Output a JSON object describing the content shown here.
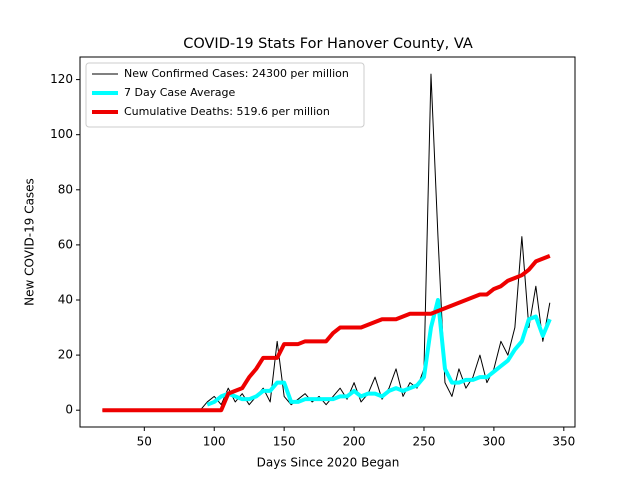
{
  "chart_data": {
    "type": "line",
    "title": "COVID-19 Stats For Hanover County, VA",
    "xlabel": "Days Since 2020 Began",
    "ylabel": "New COVID-19 Cases",
    "x": [
      20,
      25,
      30,
      35,
      40,
      45,
      50,
      55,
      60,
      65,
      70,
      75,
      80,
      85,
      90,
      95,
      100,
      105,
      110,
      115,
      120,
      125,
      130,
      135,
      140,
      145,
      150,
      155,
      160,
      165,
      170,
      175,
      180,
      185,
      190,
      195,
      200,
      205,
      210,
      215,
      220,
      225,
      230,
      235,
      240,
      245,
      250,
      255,
      260,
      265,
      270,
      275,
      280,
      285,
      290,
      295,
      300,
      305,
      310,
      315,
      320,
      325,
      330,
      335,
      340
    ],
    "series": [
      {
        "name": "New Confirmed Cases: 24300 per million",
        "color": "#000000",
        "width": 1,
        "values": [
          0,
          0,
          0,
          0,
          0,
          0,
          0,
          0,
          0,
          0,
          0,
          0,
          0,
          0,
          0,
          3,
          5,
          2,
          8,
          3,
          6,
          2,
          5,
          8,
          3,
          25,
          5,
          2,
          4,
          6,
          3,
          5,
          2,
          5,
          8,
          4,
          10,
          3,
          6,
          12,
          4,
          8,
          15,
          5,
          10,
          8,
          15,
          122,
          63,
          10,
          5,
          15,
          8,
          12,
          20,
          10,
          15,
          25,
          20,
          30,
          63,
          30,
          45,
          25,
          39
        ]
      },
      {
        "name": "7 Day Case Average",
        "color": "#00ffff",
        "width": 4,
        "values": [
          null,
          null,
          null,
          null,
          null,
          null,
          null,
          null,
          null,
          null,
          null,
          null,
          null,
          null,
          null,
          2,
          3,
          5,
          6,
          5,
          4,
          4,
          5,
          7,
          7,
          10,
          10,
          3,
          3,
          4,
          4,
          4,
          4,
          4,
          5,
          5,
          7,
          5,
          6,
          6,
          5,
          7,
          8,
          7,
          8,
          9,
          12,
          30,
          40,
          15,
          10,
          10,
          11,
          11,
          12,
          12,
          14,
          16,
          18,
          22,
          25,
          33,
          34,
          27,
          33
        ]
      },
      {
        "name": "Cumulative Deaths: 519.6 per million",
        "color": "#ee0000",
        "width": 4,
        "values": [
          0,
          0,
          0,
          0,
          0,
          0,
          0,
          0,
          0,
          0,
          0,
          0,
          0,
          0,
          0,
          0,
          0,
          0,
          6,
          7,
          8,
          12,
          15,
          19,
          19,
          19,
          24,
          24,
          24,
          25,
          25,
          25,
          25,
          28,
          30,
          30,
          30,
          30,
          31,
          32,
          33,
          33,
          33,
          34,
          35,
          35,
          35,
          35,
          36,
          37,
          38,
          39,
          40,
          41,
          42,
          42,
          44,
          45,
          47,
          48,
          49,
          51,
          54,
          55,
          56
        ]
      }
    ],
    "xlim": [
      4,
      358
    ],
    "ylim": [
      -6.1,
      128.2
    ],
    "xticks": [
      50,
      100,
      150,
      200,
      250,
      300,
      350
    ],
    "yticks": [
      0,
      20,
      40,
      60,
      80,
      100,
      120
    ],
    "legend": "upper left"
  }
}
